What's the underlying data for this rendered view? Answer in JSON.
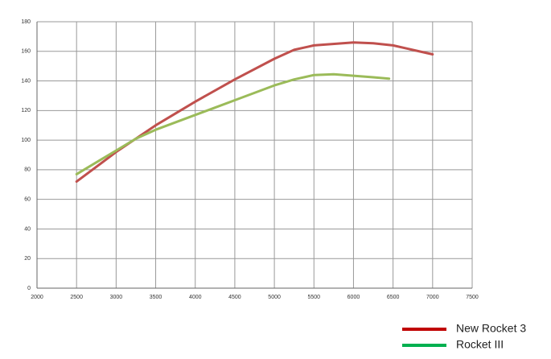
{
  "chart_data": {
    "type": "line",
    "series": [
      {
        "name": "New Rocket 3",
        "color": "#c0504d",
        "legend_color": "#c00000",
        "x": [
          2500,
          3000,
          3500,
          4000,
          4500,
          5000,
          5250,
          5500,
          6000,
          6250,
          6500,
          7000
        ],
        "values": [
          72,
          92,
          110,
          126,
          141,
          155,
          161,
          164,
          166,
          165.5,
          164,
          158
        ]
      },
      {
        "name": "Rocket III",
        "color": "#9bbb59",
        "legend_color": "#00b050",
        "x": [
          2500,
          3000,
          3250,
          3500,
          4000,
          4250,
          4500,
          5000,
          5250,
          5500,
          5750,
          6000,
          6250,
          6450
        ],
        "values": [
          77,
          93,
          101,
          107,
          117,
          122,
          127,
          137,
          141,
          144,
          144.5,
          143.5,
          142.5,
          141.5
        ]
      }
    ],
    "xlim": [
      2000,
      7500
    ],
    "xticks": [
      2000,
      2500,
      3000,
      3500,
      4000,
      4500,
      5000,
      5500,
      6000,
      6500,
      7000,
      7500
    ],
    "ylim": [
      0,
      180
    ],
    "yticks": [
      0,
      20,
      40,
      60,
      80,
      100,
      120,
      140,
      160,
      180
    ],
    "grid": true
  }
}
